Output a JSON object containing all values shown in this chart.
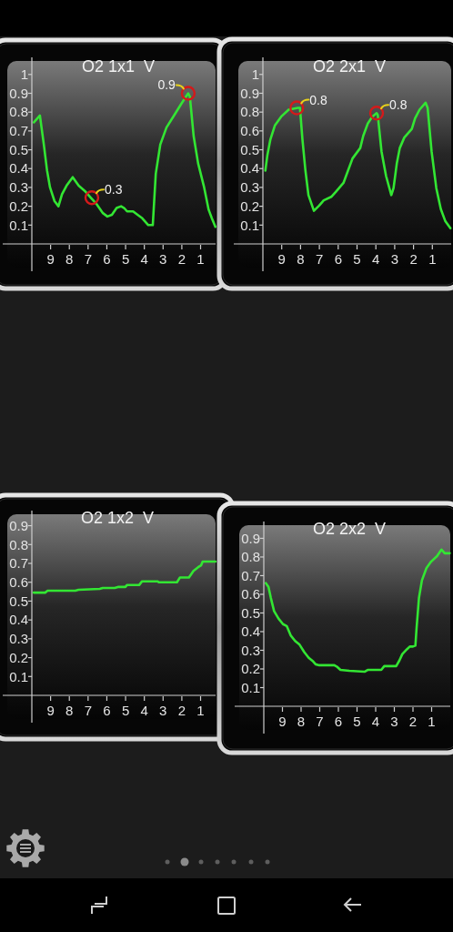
{
  "chart_data": [
    {
      "type": "line",
      "title": "O2 1x1  V",
      "x": [
        9.89,
        9.57,
        9.36,
        9.19,
        9.03,
        8.79,
        8.58,
        8.39,
        8.15,
        7.82,
        7.5,
        7.18,
        6.86,
        6.53,
        6.21,
        5.97,
        5.73,
        5.48,
        5.24,
        5.08,
        4.92,
        4.6,
        4.36,
        4.11,
        3.79,
        3.55,
        3.39,
        3.15,
        2.82,
        2.42,
        2.02,
        1.66,
        1.57,
        1.37,
        1.13,
        0.81,
        0.57,
        0.4,
        0.21
      ],
      "values": [
        0.71,
        0.75,
        0.58,
        0.43,
        0.33,
        0.25,
        0.22,
        0.29,
        0.34,
        0.39,
        0.34,
        0.31,
        0.27,
        0.23,
        0.18,
        0.16,
        0.17,
        0.21,
        0.22,
        0.21,
        0.19,
        0.19,
        0.17,
        0.15,
        0.11,
        0.11,
        0.41,
        0.58,
        0.68,
        0.75,
        0.82,
        0.88,
        0.86,
        0.63,
        0.47,
        0.33,
        0.2,
        0.15,
        0.1
      ],
      "color": "#33e633",
      "xlim": [
        10,
        0.2
      ],
      "xticks": [
        9,
        8,
        7,
        6,
        5,
        4,
        3,
        2,
        1
      ],
      "ylim": [
        0,
        1.09
      ],
      "yticks": [
        {
          "value": 0.11,
          "label": "0.1"
        },
        {
          "value": 0.22,
          "label": "0.2"
        },
        {
          "value": 0.33,
          "label": "0.3"
        },
        {
          "value": 0.44,
          "label": "0.4"
        },
        {
          "value": 0.55,
          "label": "0.5"
        },
        {
          "value": 0.66,
          "label": "0.7"
        },
        {
          "value": 0.77,
          "label": "0.8"
        },
        {
          "value": 0.88,
          "label": "0.9"
        },
        {
          "value": 0.99,
          "label": "1"
        }
      ],
      "annotations": [
        {
          "text": "0.3",
          "x": 6.8,
          "y": 0.27
        },
        {
          "text": "0.9",
          "x": 1.66,
          "y": 0.88
        }
      ]
    },
    {
      "type": "line",
      "title": "O2 2x1  V",
      "x": [
        9.87,
        9.76,
        9.6,
        9.36,
        9.03,
        8.63,
        8.14,
        8.03,
        7.9,
        7.74,
        7.58,
        7.29,
        7.01,
        6.77,
        6.37,
        6.12,
        5.72,
        5.48,
        5.24,
        4.83,
        4.67,
        4.43,
        4.19,
        3.96,
        3.9,
        3.7,
        3.46,
        3.18,
        3.06,
        2.89,
        2.73,
        2.49,
        2.09,
        1.92,
        1.68,
        1.36,
        1.25,
        1.04,
        0.79,
        0.55,
        0.31,
        0.04
      ],
      "values": [
        0.42,
        0.51,
        0.6,
        0.68,
        0.73,
        0.77,
        0.78,
        0.78,
        0.6,
        0.42,
        0.28,
        0.19,
        0.22,
        0.25,
        0.27,
        0.3,
        0.35,
        0.42,
        0.49,
        0.55,
        0.62,
        0.69,
        0.73,
        0.75,
        0.74,
        0.53,
        0.39,
        0.28,
        0.32,
        0.46,
        0.55,
        0.61,
        0.66,
        0.72,
        0.77,
        0.81,
        0.78,
        0.53,
        0.32,
        0.2,
        0.13,
        0.09
      ],
      "color": "#33e633",
      "xlim": [
        10,
        0
      ],
      "xticks": [
        9,
        8,
        7,
        6,
        5,
        4,
        3,
        2,
        1
      ],
      "ylim": [
        0,
        1.07
      ],
      "yticks": [
        {
          "value": 0.108,
          "label": "0.1"
        },
        {
          "value": 0.216,
          "label": "0.2"
        },
        {
          "value": 0.324,
          "label": "0.3"
        },
        {
          "value": 0.432,
          "label": "0.4"
        },
        {
          "value": 0.54,
          "label": "0.5"
        },
        {
          "value": 0.648,
          "label": "0.6"
        },
        {
          "value": 0.756,
          "label": "0.8"
        },
        {
          "value": 0.864,
          "label": "0.9"
        },
        {
          "value": 0.972,
          "label": "1"
        }
      ],
      "annotations": [
        {
          "text": "0.8",
          "x": 8.2,
          "y": 0.78
        },
        {
          "text": "0.8",
          "x": 3.96,
          "y": 0.75
        }
      ]
    },
    {
      "type": "line",
      "title": "O2 1x2  V",
      "x": [
        9.9,
        9.29,
        9.16,
        7.68,
        7.51,
        6.38,
        6.22,
        5.58,
        5.41,
        5.01,
        4.93,
        4.28,
        4.12,
        3.31,
        3.23,
        2.26,
        2.1,
        1.62,
        1.38,
        1.13,
        0.97,
        0.89,
        0.21
      ],
      "values": [
        0.545,
        0.545,
        0.555,
        0.555,
        0.56,
        0.565,
        0.57,
        0.57,
        0.575,
        0.575,
        0.585,
        0.585,
        0.605,
        0.605,
        0.6,
        0.6,
        0.625,
        0.625,
        0.66,
        0.68,
        0.69,
        0.71,
        0.71
      ],
      "color": "#33e633",
      "xlim": [
        10,
        0.2
      ],
      "xticks": [
        9,
        8,
        7,
        6,
        5,
        4,
        3,
        2,
        1
      ],
      "ylim": [
        0,
        0.98
      ],
      "yticks": [
        0.1,
        0.2,
        0.3,
        0.4,
        0.5,
        0.6,
        0.7,
        0.8,
        0.9
      ]
    },
    {
      "type": "line",
      "title": "O2 2x2  V",
      "x": [
        9.89,
        9.75,
        9.62,
        9.45,
        9.21,
        8.97,
        8.77,
        8.56,
        8.32,
        8.08,
        7.83,
        7.59,
        7.35,
        7.22,
        7.02,
        6.22,
        6.05,
        5.89,
        5.41,
        4.6,
        4.43,
        3.7,
        3.54,
        2.9,
        2.73,
        2.57,
        2.33,
        2.17,
        2.0,
        1.87,
        1.81,
        1.68,
        1.52,
        1.28,
        1.03,
        0.71,
        0.47,
        0.3,
        0.03
      ],
      "values": [
        0.66,
        0.64,
        0.58,
        0.51,
        0.47,
        0.44,
        0.43,
        0.38,
        0.35,
        0.33,
        0.29,
        0.26,
        0.24,
        0.225,
        0.22,
        0.22,
        0.21,
        0.195,
        0.19,
        0.185,
        0.195,
        0.195,
        0.215,
        0.215,
        0.245,
        0.28,
        0.305,
        0.32,
        0.32,
        0.325,
        0.415,
        0.58,
        0.675,
        0.74,
        0.775,
        0.805,
        0.84,
        0.82,
        0.82
      ],
      "color": "#33e633",
      "xlim": [
        10,
        0
      ],
      "xticks": [
        9,
        8,
        7,
        6,
        5,
        4,
        3,
        2,
        1
      ],
      "ylim": [
        0,
        0.99
      ],
      "yticks": [
        0.1,
        0.2,
        0.3,
        0.4,
        0.5,
        0.6,
        0.7,
        0.8,
        0.9
      ]
    }
  ]
}
